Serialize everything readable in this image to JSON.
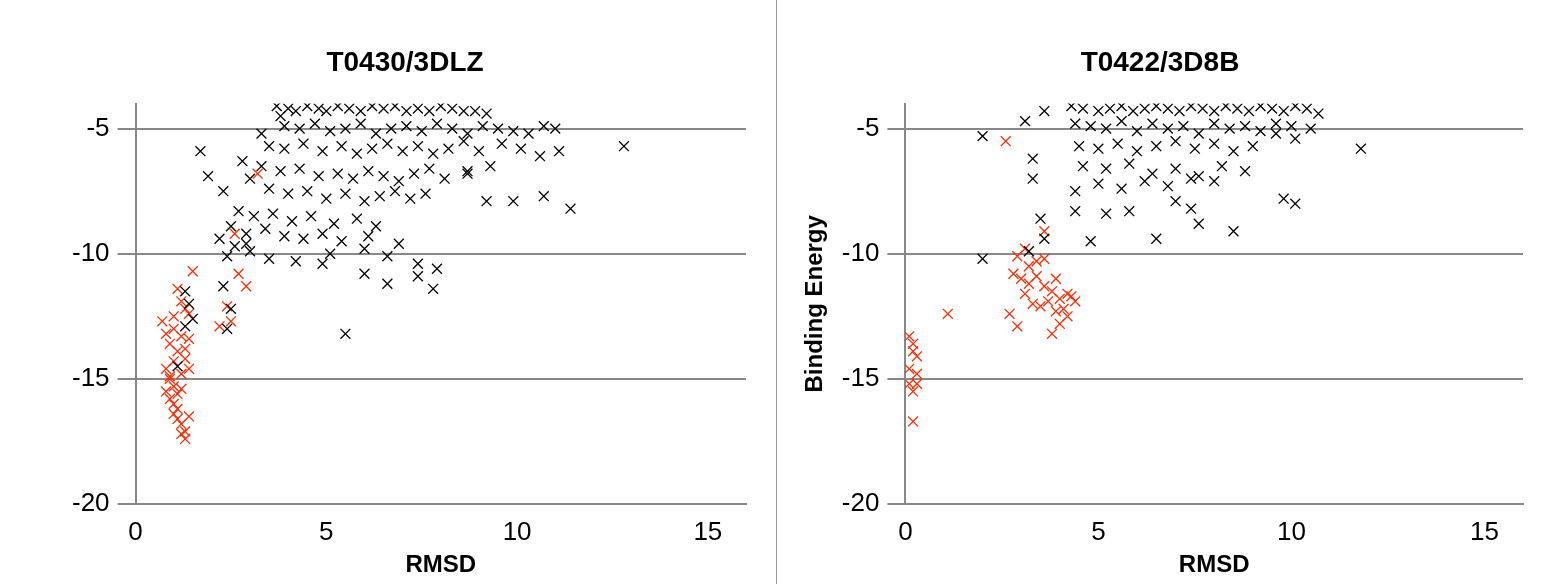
{
  "chart_data": [
    {
      "type": "scatter",
      "title": "T0430/3DLZ",
      "xlabel": "RMSD",
      "xlim": [
        0,
        16
      ],
      "ylim": [
        -20,
        -4
      ],
      "xticks": [
        0,
        5,
        10,
        15
      ],
      "yticks": [
        -20,
        -15,
        -10,
        -5
      ],
      "grid": "y",
      "marker": "cross",
      "legend": false,
      "series": [
        {
          "color": "#000000",
          "x": [
            3.7,
            4.0,
            4.2,
            4.5,
            4.8,
            5.0,
            5.3,
            5.6,
            5.9,
            6.2,
            6.5,
            6.8,
            7.1,
            7.4,
            7.7,
            8.0,
            8.3,
            8.6,
            8.9,
            9.2,
            3.9,
            4.3,
            4.7,
            5.1,
            5.5,
            5.9,
            6.3,
            6.7,
            7.1,
            7.5,
            7.9,
            8.3,
            8.7,
            9.1,
            9.5,
            9.9,
            10.3,
            10.7,
            11.0,
            3.5,
            3.9,
            4.4,
            4.9,
            5.4,
            5.8,
            6.2,
            6.6,
            7.0,
            7.4,
            7.8,
            8.2,
            8.6,
            9.0,
            9.6,
            10.1,
            10.6,
            11.1,
            3.3,
            3.8,
            4.3,
            4.8,
            5.3,
            5.7,
            6.1,
            6.5,
            6.9,
            7.3,
            7.7,
            8.1,
            8.7,
            9.3,
            3.0,
            3.5,
            4.0,
            4.5,
            5.0,
            5.5,
            6.0,
            6.4,
            6.8,
            7.2,
            7.6,
            2.7,
            3.1,
            3.6,
            4.1,
            4.6,
            5.2,
            5.8,
            6.3,
            2.5,
            2.9,
            3.4,
            3.9,
            4.4,
            4.9,
            5.4,
            6.1,
            6.9,
            2.2,
            2.6,
            3.0,
            3.5,
            4.2,
            5.1,
            6.0,
            6.6,
            7.4,
            7.9,
            1.7,
            1.9,
            2.3,
            2.8,
            3.3,
            3.8,
            4.9,
            6.0,
            2.4,
            2.9,
            12.8,
            11.4,
            10.7,
            9.9,
            9.2,
            8.7,
            5.5,
            7.8,
            6.6,
            7.4,
            1.3,
            1.4,
            1.5,
            1.3,
            2.3,
            2.5,
            2.4,
            1.1
          ],
          "values": [
            -4.1,
            -4.2,
            -4.3,
            -4.1,
            -4.2,
            -4.3,
            -4.1,
            -4.2,
            -4.3,
            -4.1,
            -4.2,
            -4.1,
            -4.3,
            -4.2,
            -4.3,
            -4.1,
            -4.2,
            -4.3,
            -4.3,
            -4.4,
            -4.9,
            -5.0,
            -4.8,
            -5.1,
            -5.0,
            -4.8,
            -5.2,
            -5.0,
            -4.9,
            -5.1,
            -4.8,
            -5.0,
            -5.2,
            -4.9,
            -5.0,
            -5.1,
            -5.2,
            -4.9,
            -5.0,
            -5.7,
            -5.8,
            -5.6,
            -5.9,
            -5.7,
            -6.0,
            -5.8,
            -5.6,
            -5.9,
            -5.7,
            -6.0,
            -5.8,
            -5.5,
            -5.9,
            -5.6,
            -5.8,
            -6.1,
            -5.9,
            -6.5,
            -6.7,
            -6.6,
            -6.9,
            -6.8,
            -7.0,
            -6.7,
            -6.9,
            -7.1,
            -6.8,
            -6.6,
            -7.0,
            -6.7,
            -6.5,
            -7.0,
            -7.4,
            -7.6,
            -7.5,
            -7.8,
            -7.6,
            -7.9,
            -7.7,
            -7.5,
            -7.8,
            -7.6,
            -8.3,
            -8.5,
            -8.4,
            -8.7,
            -8.5,
            -8.8,
            -8.6,
            -8.9,
            -8.9,
            -9.2,
            -9.0,
            -9.3,
            -9.4,
            -9.2,
            -9.5,
            -9.3,
            -9.6,
            -9.4,
            -9.7,
            -9.9,
            -10.2,
            -10.3,
            -10.0,
            -9.8,
            -10.1,
            -10.4,
            -10.6,
            -5.9,
            -6.9,
            -7.5,
            -6.3,
            -5.2,
            -4.5,
            -10.4,
            -10.8,
            -10.1,
            -9.6,
            -5.7,
            -8.2,
            -7.7,
            -7.9,
            -7.9,
            -6.8,
            -13.2,
            -11.4,
            -11.2,
            -10.9,
            -11.5,
            -12.0,
            -12.6,
            -12.9,
            -11.3,
            -12.2,
            -13.0,
            -14.5
          ]
        },
        {
          "color": "#ff2a00",
          "x": [
            0.7,
            0.8,
            0.9,
            1.0,
            1.1,
            1.2,
            0.8,
            0.9,
            1.0,
            1.1,
            1.2,
            1.3,
            0.9,
            1.0,
            1.1,
            1.2,
            1.3,
            1.4,
            0.8,
            0.9,
            1.0,
            1.1,
            1.2,
            1.0,
            1.1,
            1.2,
            1.3,
            1.4,
            1.2,
            1.3,
            1.4,
            1.3,
            1.0,
            1.4,
            1.5,
            2.2,
            2.5,
            2.7,
            2.9,
            3.2,
            2.6,
            2.4
          ],
          "values": [
            -12.7,
            -13.2,
            -13.6,
            -12.5,
            -11.4,
            -11.9,
            -14.6,
            -15.0,
            -15.3,
            -15.6,
            -14.8,
            -14.2,
            -15.8,
            -16.0,
            -16.2,
            -15.4,
            -13.8,
            -13.4,
            -15.5,
            -14.9,
            -14.3,
            -13.9,
            -13.3,
            -16.4,
            -16.6,
            -16.8,
            -17.1,
            -14.6,
            -17.2,
            -17.4,
            -16.5,
            -12.2,
            -13.0,
            -12.4,
            -10.7,
            -12.9,
            -12.7,
            -10.8,
            -11.3,
            -6.8,
            -9.2,
            -12.1
          ]
        }
      ]
    },
    {
      "type": "scatter",
      "title": "T0422/3D8B",
      "xlabel": "RMSD",
      "ylabel": "Binding Energy",
      "xlim": [
        0,
        16
      ],
      "ylim": [
        -20,
        -4
      ],
      "xticks": [
        0,
        5,
        10,
        15
      ],
      "yticks": [
        -20,
        -15,
        -10,
        -5
      ],
      "grid": "y",
      "marker": "cross",
      "legend": false,
      "series": [
        {
          "color": "#000000",
          "x": [
            4.3,
            4.6,
            5.0,
            5.3,
            5.6,
            5.9,
            6.2,
            6.5,
            6.8,
            7.1,
            7.4,
            7.7,
            8.0,
            8.3,
            8.6,
            8.9,
            9.2,
            9.5,
            9.8,
            10.1,
            10.4,
            10.7,
            4.4,
            4.8,
            5.2,
            5.6,
            6.0,
            6.4,
            6.8,
            7.2,
            7.6,
            8.0,
            8.4,
            8.8,
            9.2,
            9.6,
            10.0,
            10.5,
            4.5,
            5.0,
            5.5,
            6.0,
            6.5,
            7.0,
            7.5,
            8.0,
            8.5,
            9.0,
            9.6,
            4.6,
            5.2,
            5.8,
            6.4,
            7.0,
            7.6,
            8.2,
            8.8,
            5.0,
            5.6,
            6.2,
            6.8,
            7.4,
            8.0,
            11.8,
            10.1,
            9.8,
            8.5,
            6.5,
            4.8,
            7.6,
            7.4,
            5.8,
            2.0,
            2.0,
            3.3,
            3.3,
            3.5,
            3.6,
            3.2,
            3.1,
            3.6,
            4.4,
            4.4,
            5.2,
            7.0,
            10.1
          ],
          "values": [
            -4.1,
            -4.2,
            -4.3,
            -4.2,
            -4.1,
            -4.3,
            -4.2,
            -4.1,
            -4.2,
            -4.3,
            -4.1,
            -4.2,
            -4.3,
            -4.1,
            -4.2,
            -4.3,
            -4.1,
            -4.2,
            -4.3,
            -4.1,
            -4.2,
            -4.4,
            -4.8,
            -4.9,
            -5.0,
            -4.7,
            -5.1,
            -4.8,
            -5.0,
            -4.9,
            -5.2,
            -4.8,
            -5.0,
            -4.9,
            -5.1,
            -4.8,
            -4.9,
            -5.0,
            -5.7,
            -5.8,
            -5.6,
            -5.9,
            -5.7,
            -5.5,
            -5.8,
            -5.6,
            -5.9,
            -5.7,
            -5.2,
            -6.5,
            -6.6,
            -6.4,
            -6.8,
            -6.6,
            -6.9,
            -6.5,
            -6.7,
            -7.2,
            -7.4,
            -7.1,
            -7.3,
            -7.0,
            -7.1,
            -5.8,
            -8.0,
            -7.8,
            -9.1,
            -9.4,
            -9.5,
            -8.8,
            -8.2,
            -8.3,
            -10.2,
            -5.3,
            -6.2,
            -7.0,
            -8.6,
            -9.4,
            -9.9,
            -4.7,
            -4.3,
            -7.5,
            -8.3,
            -8.4,
            -7.9,
            -5.4
          ]
        },
        {
          "color": "#ff2a00",
          "x": [
            2.6,
            1.1,
            0.1,
            0.2,
            0.3,
            0.1,
            0.2,
            0.3,
            0.2,
            0.1,
            0.3,
            0.2,
            2.8,
            3.0,
            3.2,
            3.4,
            3.6,
            3.8,
            4.0,
            4.2,
            4.4,
            3.1,
            3.3,
            3.5,
            3.7,
            3.9,
            4.1,
            4.3,
            2.9,
            3.2,
            3.6,
            3.9,
            4.2,
            2.7,
            2.9,
            3.8,
            4.0,
            3.4,
            3.1,
            3.6
          ],
          "values": [
            -5.5,
            -12.4,
            -13.3,
            -13.6,
            -14.1,
            -14.6,
            -13.9,
            -15.2,
            -15.5,
            -15.2,
            -14.8,
            -16.7,
            -10.8,
            -11.0,
            -11.2,
            -10.9,
            -11.3,
            -11.5,
            -11.8,
            -11.6,
            -11.9,
            -11.6,
            -12.0,
            -12.1,
            -11.9,
            -12.3,
            -12.2,
            -11.7,
            -10.1,
            -10.5,
            -10.2,
            -11.0,
            -12.5,
            -12.4,
            -12.9,
            -13.2,
            -12.8,
            -10.3,
            -9.8,
            -9.1
          ]
        }
      ]
    }
  ]
}
